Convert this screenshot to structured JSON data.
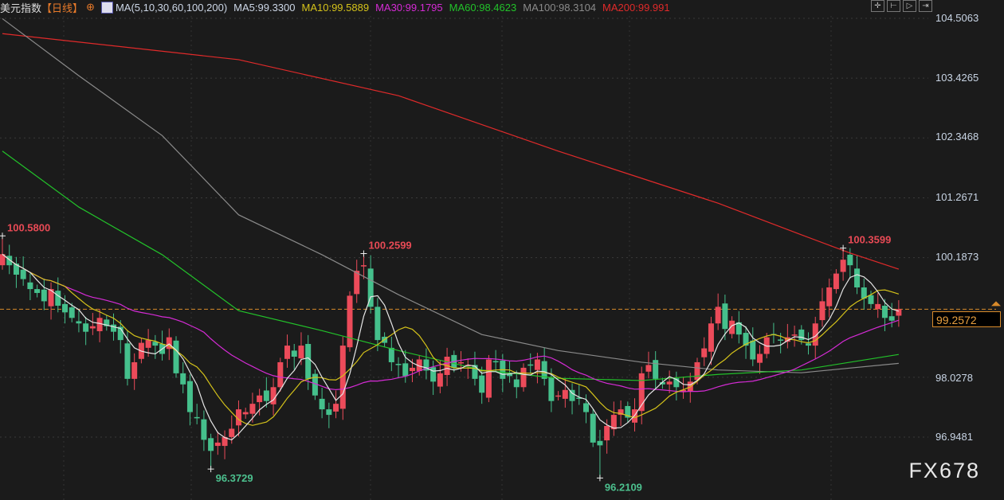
{
  "header": {
    "title": "美元指数",
    "period": "【日线】",
    "ma_label": "MA(5,10,30,60,100,200)",
    "ma": [
      {
        "label": "MA5:99.3300",
        "color": "#e6e6e6"
      },
      {
        "label": "MA10:99.5889",
        "color": "#d4c21a"
      },
      {
        "label": "MA30:99.1795",
        "color": "#d52bd5"
      },
      {
        "label": "MA60:98.4623",
        "color": "#22c22a"
      },
      {
        "label": "MA100:98.3104",
        "color": "#8a8a8a"
      },
      {
        "label": "MA200:99.991",
        "color": "#e02a2a"
      }
    ]
  },
  "toolbar": [
    "crosshair",
    "zoom-in",
    "zoom-out",
    "exit"
  ],
  "watermark": "FX678",
  "chart_data": {
    "type": "candlestick",
    "ylim": [
      96.0,
      104.6
    ],
    "yticks": [
      "104.5063",
      "103.4265",
      "102.3468",
      "101.2671",
      "100.1873",
      "98.0278",
      "96.9481"
    ],
    "current_price": "99.2572",
    "colors": {
      "up": "#ec4b5a",
      "down": "#45c08c",
      "current": "#d88a2a"
    },
    "close": [
      100.25,
      100.05,
      99.88,
      99.8,
      99.62,
      99.55,
      99.4,
      99.62,
      99.32,
      99.2,
      99.1,
      99.0,
      98.85,
      98.95,
      99.1,
      98.95,
      98.85,
      98.7,
      98.0,
      98.3,
      98.65,
      98.7,
      98.6,
      98.45,
      98.75,
      98.1,
      97.9,
      97.4,
      97.3,
      96.9,
      96.7,
      96.85,
      96.95,
      97.1,
      97.45,
      97.4,
      97.55,
      97.7,
      97.6,
      97.85,
      98.3,
      98.6,
      98.4,
      98.6,
      98.0,
      97.7,
      97.45,
      97.35,
      97.55,
      98.6,
      99.5,
      99.95,
      100.05,
      99.3,
      98.7,
      98.65,
      98.3,
      98.25,
      98.05,
      98.2,
      98.35,
      98.15,
      97.95,
      98.1,
      98.4,
      98.2,
      98.3,
      98.25,
      98.0,
      97.75,
      98.35,
      98.3,
      98.0,
      98.05,
      97.85,
      98.2,
      98.25,
      98.35,
      98.0,
      97.6,
      97.7,
      97.8,
      97.6,
      97.65,
      97.4,
      96.85,
      96.8,
      97.15,
      97.35,
      97.45,
      97.3,
      97.45,
      98.1,
      98.25,
      98.0,
      97.9,
      97.95,
      97.85,
      97.8,
      97.95,
      98.3,
      98.55,
      99.0,
      99.3,
      98.9,
      99.05,
      98.8,
      98.6,
      98.35,
      98.45,
      98.75,
      98.8,
      98.7,
      98.75,
      98.8,
      98.7,
      98.6,
      99.0,
      99.4,
      99.65,
      99.9,
      100.15,
      100.05,
      99.65,
      99.45,
      99.35,
      99.35,
      99.1,
      99.05,
      99.26
    ],
    "ma_long": {
      "MA60": [
        [
          0,
          102.11
        ],
        [
          11,
          101.1
        ],
        [
          23,
          100.24
        ],
        [
          34,
          99.23
        ],
        [
          46,
          98.87
        ],
        [
          57,
          98.51
        ],
        [
          69,
          98.16
        ],
        [
          80,
          98.01
        ],
        [
          92,
          97.97
        ],
        [
          103,
          98.08
        ],
        [
          115,
          98.16
        ],
        [
          129,
          98.44
        ]
      ],
      "MA100": [
        [
          0,
          104.5
        ],
        [
          11,
          103.47
        ],
        [
          23,
          102.39
        ],
        [
          34,
          100.96
        ],
        [
          46,
          100.24
        ],
        [
          57,
          99.52
        ],
        [
          69,
          98.8
        ],
        [
          80,
          98.51
        ],
        [
          92,
          98.3
        ],
        [
          103,
          98.16
        ],
        [
          115,
          98.11
        ],
        [
          129,
          98.28
        ]
      ],
      "MA200": [
        [
          0,
          104.23
        ],
        [
          34,
          103.76
        ],
        [
          57,
          103.11
        ],
        [
          80,
          102.11
        ],
        [
          103,
          101.17
        ],
        [
          115,
          100.6
        ],
        [
          122,
          100.27
        ],
        [
          129,
          99.98
        ]
      ]
    },
    "annotations": [
      {
        "text": "100.5800",
        "index": 0,
        "price": 100.58,
        "kind": "high"
      },
      {
        "text": "100.2599",
        "index": 52,
        "price": 100.2599,
        "kind": "high"
      },
      {
        "text": "100.3599",
        "index": 121,
        "price": 100.3599,
        "kind": "high"
      },
      {
        "text": "96.3729",
        "index": 30,
        "price": 96.3729,
        "kind": "low"
      },
      {
        "text": "96.2109",
        "index": 86,
        "price": 96.2109,
        "kind": "low"
      }
    ]
  }
}
